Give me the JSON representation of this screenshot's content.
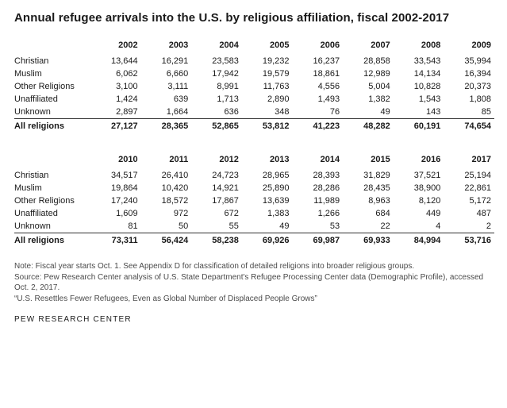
{
  "title": "Annual refugee arrivals into the U.S. by religious affiliation, fiscal 2002-2017",
  "rows": [
    "Christian",
    "Muslim",
    "Other Religions",
    "Unaffiliated",
    "Unknown"
  ],
  "total_label": "All religions",
  "block1": {
    "years": [
      "2002",
      "2003",
      "2004",
      "2005",
      "2006",
      "2007",
      "2008",
      "2009"
    ],
    "data": {
      "Christian": [
        "13,644",
        "16,291",
        "23,583",
        "19,232",
        "16,237",
        "28,858",
        "33,543",
        "35,994"
      ],
      "Muslim": [
        "6,062",
        "6,660",
        "17,942",
        "19,579",
        "18,861",
        "12,989",
        "14,134",
        "16,394"
      ],
      "Other Religions": [
        "3,100",
        "3,111",
        "8,991",
        "11,763",
        "4,556",
        "5,004",
        "10,828",
        "20,373"
      ],
      "Unaffiliated": [
        "1,424",
        "639",
        "1,713",
        "2,890",
        "1,493",
        "1,382",
        "1,543",
        "1,808"
      ],
      "Unknown": [
        "2,897",
        "1,664",
        "636",
        "348",
        "76",
        "49",
        "143",
        "85"
      ]
    },
    "totals": [
      "27,127",
      "28,365",
      "52,865",
      "53,812",
      "41,223",
      "48,282",
      "60,191",
      "74,654"
    ]
  },
  "block2": {
    "years": [
      "2010",
      "2011",
      "2012",
      "2013",
      "2014",
      "2015",
      "2016",
      "2017"
    ],
    "data": {
      "Christian": [
        "34,517",
        "26,410",
        "24,723",
        "28,965",
        "28,393",
        "31,829",
        "37,521",
        "25,194"
      ],
      "Muslim": [
        "19,864",
        "10,420",
        "14,921",
        "25,890",
        "28,286",
        "28,435",
        "38,900",
        "22,861"
      ],
      "Other Religions": [
        "17,240",
        "18,572",
        "17,867",
        "13,639",
        "11,989",
        "8,963",
        "8,120",
        "5,172"
      ],
      "Unaffiliated": [
        "1,609",
        "972",
        "672",
        "1,383",
        "1,266",
        "684",
        "449",
        "487"
      ],
      "Unknown": [
        "81",
        "50",
        "55",
        "49",
        "53",
        "22",
        "4",
        "2"
      ]
    },
    "totals": [
      "73,311",
      "56,424",
      "58,238",
      "69,926",
      "69,987",
      "69,933",
      "84,994",
      "53,716"
    ]
  },
  "note": "Note: Fiscal year starts Oct. 1. See Appendix D for classification of detailed religions into broader religious groups.",
  "source": "Source: Pew Research Center analysis of U.S. State Department's Refugee Processing Center data (Demographic Profile), accessed Oct. 2, 2017.",
  "report_title": "“U.S. Resettles Fewer Refugees, Even as Global Number of Displaced People Grows”",
  "logo": "PEW RESEARCH CENTER",
  "style": {
    "background_color": "#ffffff",
    "text_color": "#1a1a1a",
    "footnote_color": "#4a4a4a",
    "rule_color": "#333333",
    "title_fontsize": 15,
    "cell_fontsize": 11,
    "footnote_fontsize": 10,
    "font_family_title": "Arial",
    "font_family_body": "Arial"
  }
}
